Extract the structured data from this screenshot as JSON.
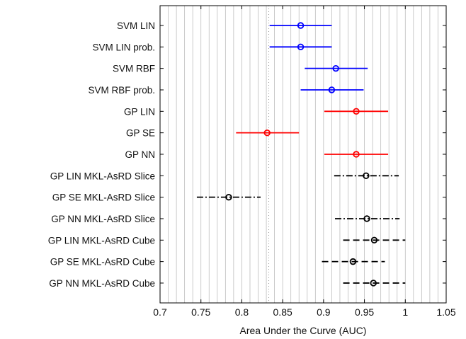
{
  "chart_data": {
    "type": "errorbar",
    "title": "",
    "xlabel": "Area Under the Curve (AUC)",
    "ylabel": "",
    "xlim": [
      0.7,
      1.05
    ],
    "xticks": [
      "0.7",
      "0.75",
      "0.8",
      "0.85",
      "0.9",
      "0.95",
      "1",
      "1.05"
    ],
    "grid": "vertical minor gridlines every 0.01",
    "reference_line": 0.833,
    "series": [
      {
        "label": "SVM LIN",
        "mean": 0.872,
        "low": 0.834,
        "high": 0.91,
        "color": "#0000ff",
        "line_style": "solid"
      },
      {
        "label": "SVM LIN prob.",
        "mean": 0.872,
        "low": 0.834,
        "high": 0.91,
        "color": "#0000ff",
        "line_style": "solid"
      },
      {
        "label": "SVM RBF",
        "mean": 0.915,
        "low": 0.877,
        "high": 0.954,
        "color": "#0000ff",
        "line_style": "solid"
      },
      {
        "label": "SVM RBF prob.",
        "mean": 0.91,
        "low": 0.872,
        "high": 0.949,
        "color": "#0000ff",
        "line_style": "solid"
      },
      {
        "label": "GP LIN",
        "mean": 0.94,
        "low": 0.901,
        "high": 0.979,
        "color": "#ff0000",
        "line_style": "solid"
      },
      {
        "label": "GP SE",
        "mean": 0.831,
        "low": 0.793,
        "high": 0.87,
        "color": "#ff0000",
        "line_style": "solid"
      },
      {
        "label": "GP NN",
        "mean": 0.94,
        "low": 0.901,
        "high": 0.979,
        "color": "#ff0000",
        "line_style": "solid"
      },
      {
        "label": "GP LIN MKL-AsRD Slice",
        "mean": 0.952,
        "low": 0.913,
        "high": 0.992,
        "color": "#000000",
        "line_style": "dashdot"
      },
      {
        "label": "GP SE MKL-AsRD Slice",
        "mean": 0.784,
        "low": 0.745,
        "high": 0.823,
        "color": "#000000",
        "line_style": "dashdot"
      },
      {
        "label": "GP NN MKL-AsRD Slice",
        "mean": 0.953,
        "low": 0.914,
        "high": 0.993,
        "color": "#000000",
        "line_style": "dashdot"
      },
      {
        "label": "GP LIN MKL-AsRD Cube",
        "mean": 0.962,
        "low": 0.924,
        "high": 1.0,
        "color": "#000000",
        "line_style": "dashed"
      },
      {
        "label": "GP SE MKL-AsRD Cube",
        "mean": 0.936,
        "low": 0.898,
        "high": 0.975,
        "color": "#000000",
        "line_style": "dashed"
      },
      {
        "label": "GP NN MKL-AsRD Cube",
        "mean": 0.961,
        "low": 0.924,
        "high": 1.0,
        "color": "#000000",
        "line_style": "dashed"
      }
    ]
  }
}
